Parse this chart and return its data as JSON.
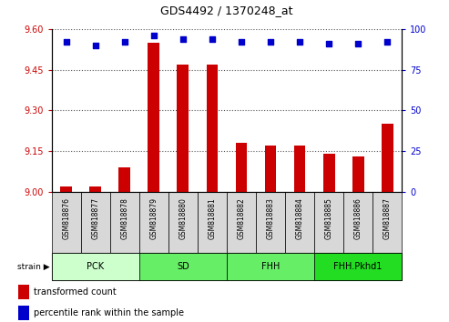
{
  "title": "GDS4492 / 1370248_at",
  "samples": [
    "GSM818876",
    "GSM818877",
    "GSM818878",
    "GSM818879",
    "GSM818880",
    "GSM818881",
    "GSM818882",
    "GSM818883",
    "GSM818884",
    "GSM818885",
    "GSM818886",
    "GSM818887"
  ],
  "transformed_count": [
    9.02,
    9.02,
    9.09,
    9.55,
    9.47,
    9.47,
    9.18,
    9.17,
    9.17,
    9.14,
    9.13,
    9.25
  ],
  "percentile_rank": [
    92,
    90,
    92,
    96,
    94,
    94,
    92,
    92,
    92,
    91,
    91,
    92
  ],
  "ylim_left": [
    9.0,
    9.6
  ],
  "ylim_right": [
    0,
    100
  ],
  "yticks_left": [
    9.0,
    9.15,
    9.3,
    9.45,
    9.6
  ],
  "yticks_right": [
    0,
    25,
    50,
    75,
    100
  ],
  "bar_color": "#cc0000",
  "dot_color": "#0000cc",
  "groups": [
    {
      "label": "PCK",
      "start": 0,
      "end": 3,
      "color": "#ccffcc"
    },
    {
      "label": "SD",
      "start": 3,
      "end": 6,
      "color": "#66ee66"
    },
    {
      "label": "FHH",
      "start": 6,
      "end": 9,
      "color": "#66ee66"
    },
    {
      "label": "FHH.Pkhd1",
      "start": 9,
      "end": 12,
      "color": "#22dd22"
    }
  ],
  "background_color": "#ffffff",
  "plot_bg_color": "#ffffff",
  "grid_color": "#555555",
  "axis_color_left": "#cc0000",
  "axis_color_right": "#0000cc",
  "tick_bg_color": "#d8d8d8",
  "legend_items": [
    {
      "label": "transformed count",
      "color": "#cc0000"
    },
    {
      "label": "percentile rank within the sample",
      "color": "#0000cc"
    }
  ]
}
